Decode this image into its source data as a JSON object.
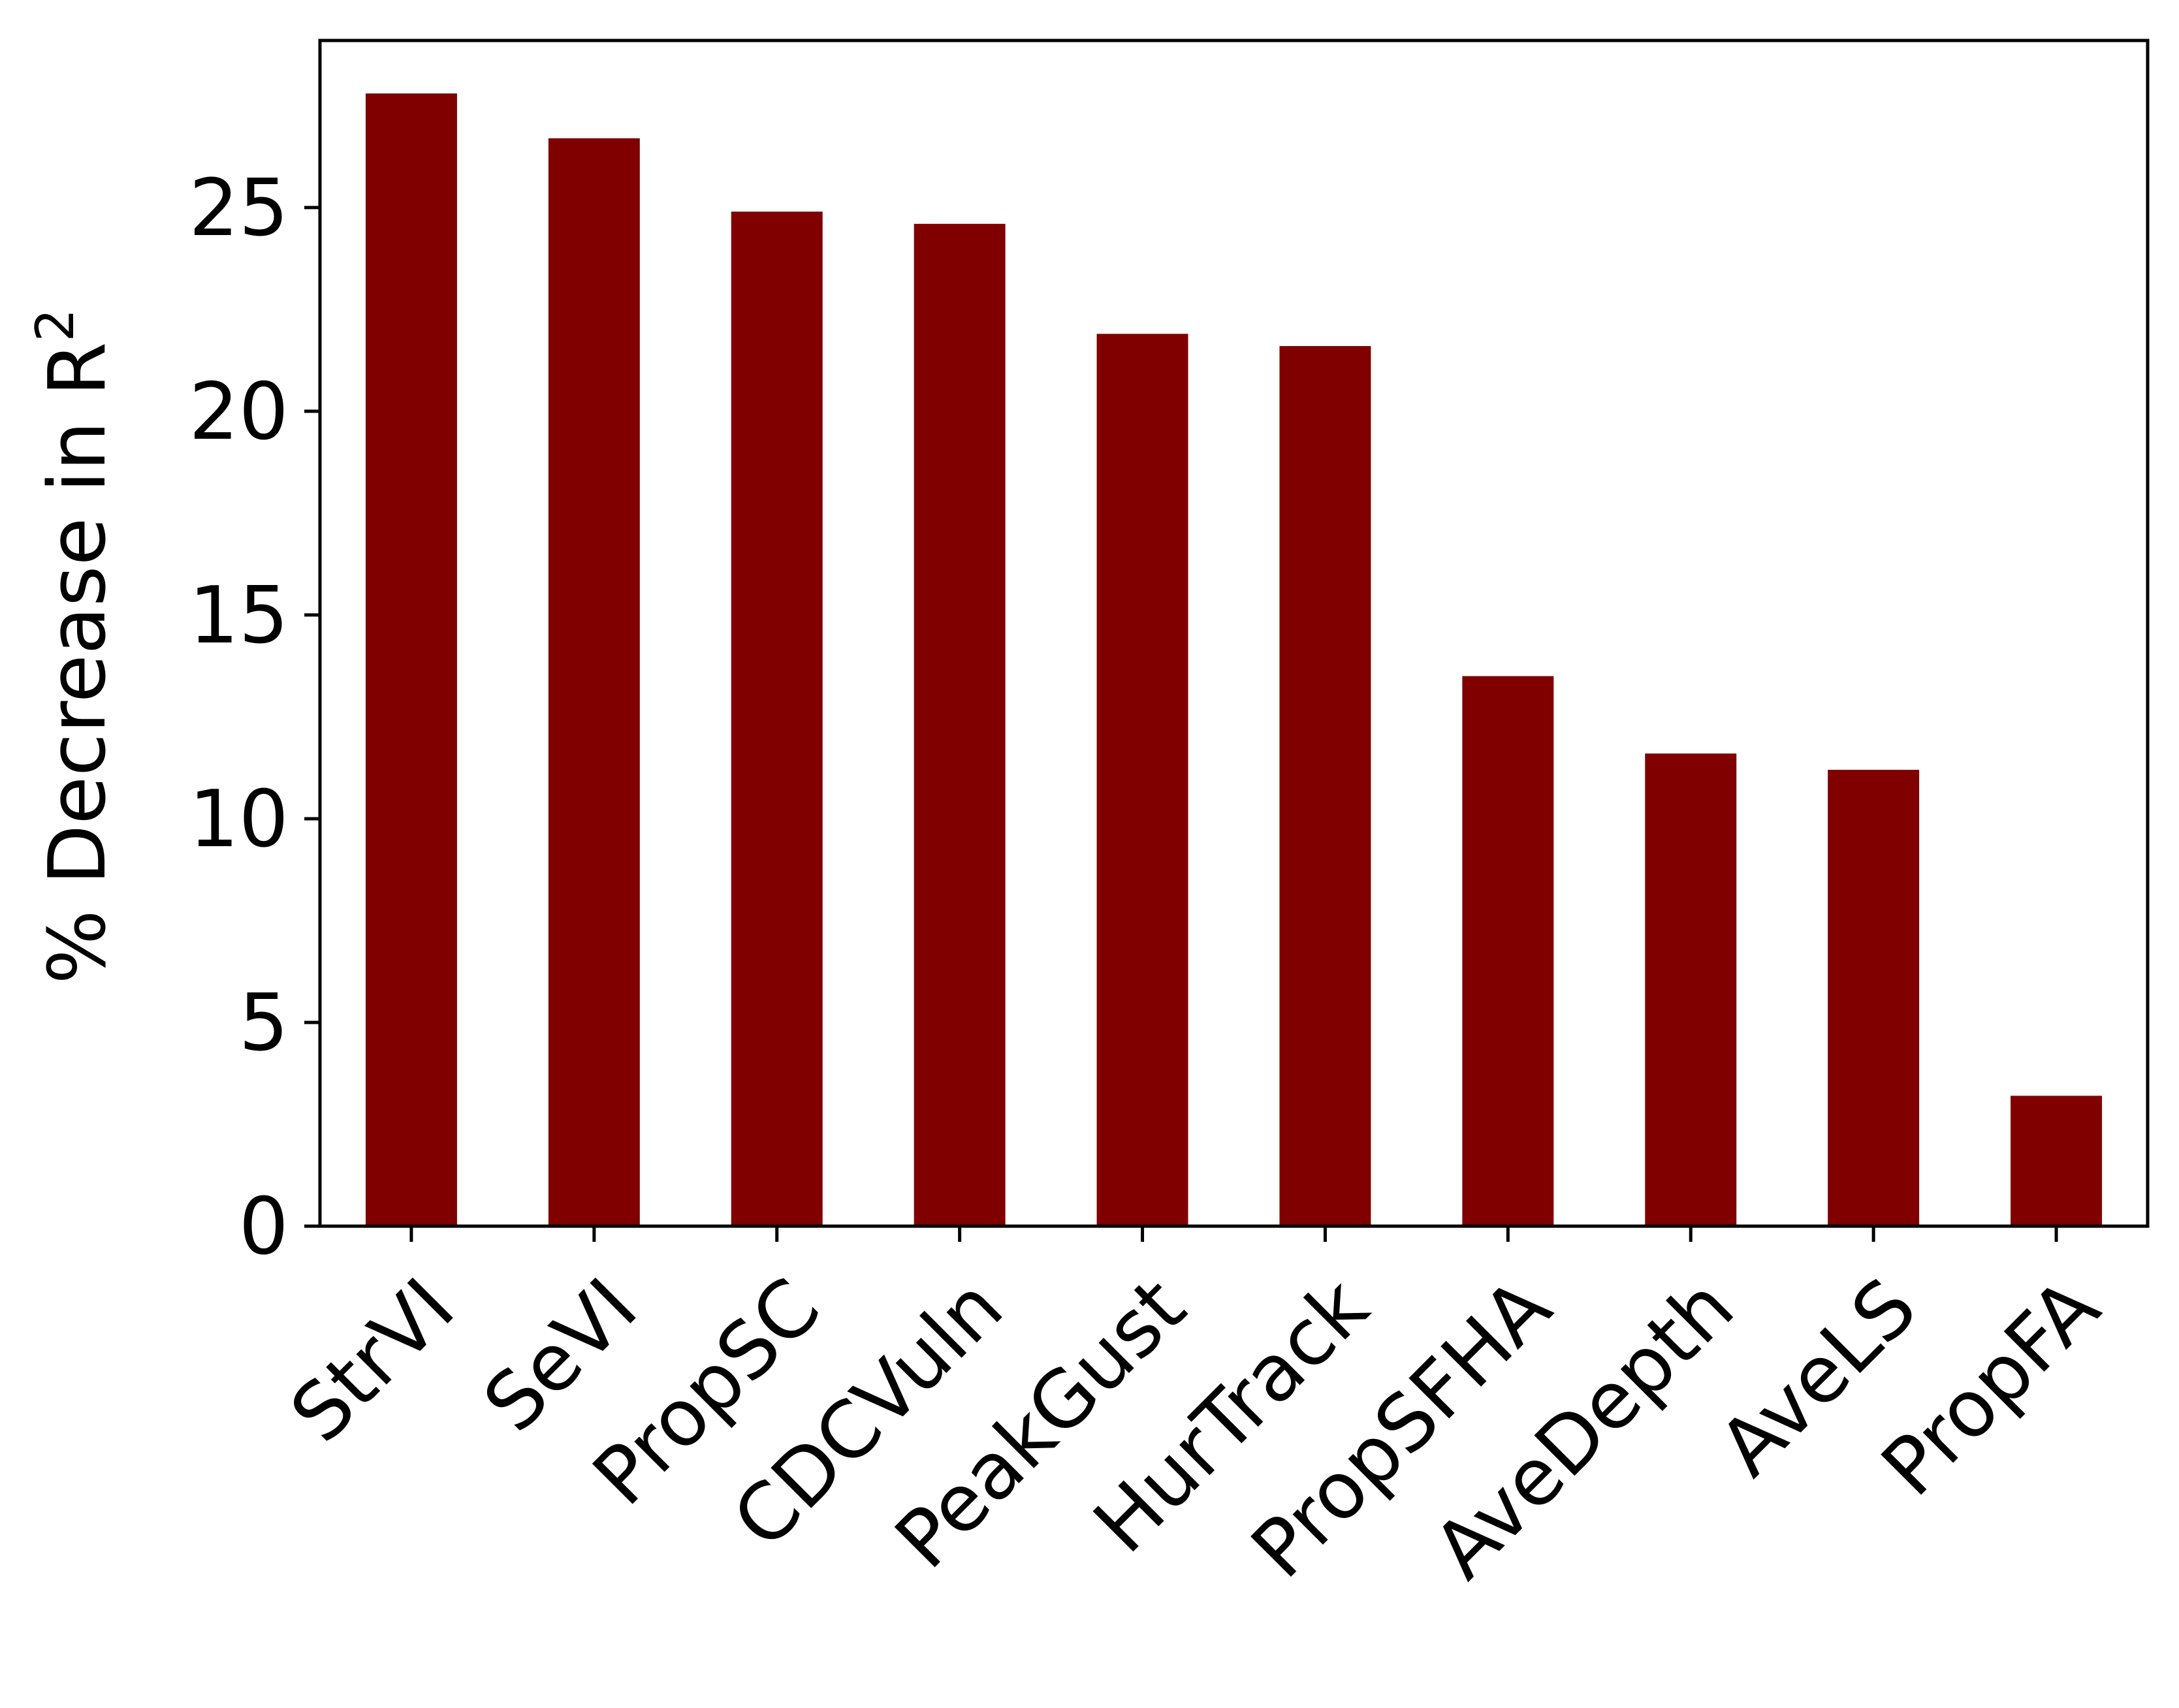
{
  "chart_data": {
    "type": "bar",
    "title": "",
    "xlabel": "",
    "ylabel": "% Decrease in R",
    "ylabel_superscript": "2",
    "categories": [
      "StrVI",
      "SeVI",
      "PropSC",
      "CDCVuln",
      "PeakGust",
      "HurTrack",
      "PropSFHA",
      "AveDepth",
      "AveLS",
      "PropFA"
    ],
    "values": [
      27.8,
      26.7,
      24.9,
      24.6,
      21.9,
      21.6,
      13.5,
      11.6,
      11.2,
      3.2
    ],
    "yticks": [
      "0",
      "5",
      "10",
      "15",
      "20",
      "25"
    ],
    "ylim": [
      0,
      29.1
    ],
    "grid": false,
    "legend": "none",
    "bar_color": "#800000"
  }
}
